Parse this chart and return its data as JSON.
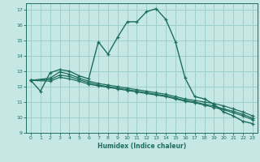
{
  "xlabel": "Humidex (Indice chaleur)",
  "bg_color": "#c5e8e5",
  "grid_color": "#9ecfcc",
  "line_color": "#1e6e5e",
  "xlim": [
    -0.5,
    23.5
  ],
  "ylim": [
    9,
    17.4
  ],
  "xticks": [
    0,
    1,
    2,
    3,
    4,
    5,
    6,
    7,
    8,
    9,
    10,
    11,
    12,
    13,
    14,
    15,
    16,
    17,
    18,
    19,
    20,
    21,
    22,
    23
  ],
  "yticks": [
    9,
    10,
    11,
    12,
    13,
    14,
    15,
    16,
    17
  ],
  "line1_x": [
    0,
    1,
    2,
    3,
    4,
    5,
    6,
    7,
    8,
    9,
    10,
    11,
    12,
    13,
    14,
    15,
    16,
    17,
    18,
    19,
    20,
    21,
    22,
    23
  ],
  "line1_y": [
    12.4,
    11.7,
    12.9,
    13.1,
    13.0,
    12.7,
    12.5,
    14.9,
    14.1,
    15.2,
    16.2,
    16.2,
    16.85,
    17.05,
    16.35,
    14.9,
    12.55,
    11.35,
    11.2,
    10.85,
    10.35,
    10.1,
    9.75,
    9.6
  ],
  "line2_x": [
    0,
    2,
    3,
    4,
    5,
    6,
    7,
    8,
    9,
    10,
    11,
    12,
    13,
    14,
    15,
    16,
    17,
    18,
    19,
    20,
    21,
    22,
    23
  ],
  "line2_y": [
    12.4,
    12.55,
    12.95,
    12.8,
    12.55,
    12.35,
    12.2,
    12.1,
    12.0,
    11.9,
    11.8,
    11.7,
    11.6,
    11.5,
    11.35,
    11.2,
    11.1,
    11.0,
    10.9,
    10.75,
    10.55,
    10.35,
    10.1
  ],
  "line3_x": [
    0,
    2,
    3,
    4,
    5,
    6,
    7,
    8,
    9,
    10,
    11,
    12,
    13,
    14,
    15,
    16,
    17,
    18,
    19,
    20,
    21,
    22,
    23
  ],
  "line3_y": [
    12.4,
    12.45,
    12.75,
    12.65,
    12.45,
    12.25,
    12.1,
    12.0,
    11.9,
    11.8,
    11.7,
    11.6,
    11.5,
    11.4,
    11.25,
    11.1,
    11.0,
    10.85,
    10.75,
    10.55,
    10.4,
    10.2,
    9.95
  ],
  "line4_x": [
    0,
    2,
    3,
    4,
    5,
    6,
    7,
    8,
    9,
    10,
    11,
    12,
    13,
    14,
    15,
    16,
    17,
    18,
    19,
    20,
    21,
    22,
    23
  ],
  "line4_y": [
    12.4,
    12.35,
    12.6,
    12.5,
    12.35,
    12.15,
    12.05,
    11.95,
    11.85,
    11.75,
    11.65,
    11.55,
    11.45,
    11.35,
    11.2,
    11.05,
    10.95,
    10.8,
    10.65,
    10.5,
    10.3,
    10.1,
    9.85
  ]
}
